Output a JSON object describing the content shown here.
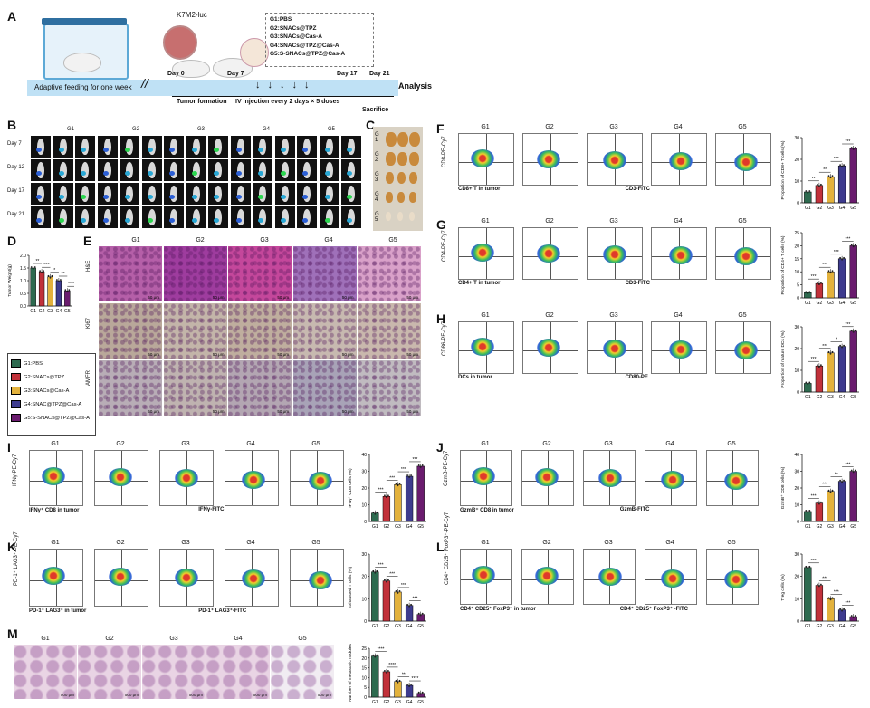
{
  "panels": [
    "A",
    "B",
    "C",
    "D",
    "E",
    "F",
    "G",
    "H",
    "I",
    "J",
    "K",
    "L",
    "M"
  ],
  "panel_a": {
    "model": "K7M2-luc",
    "groups": [
      "G1:PBS",
      "G2:SNACs@TPZ",
      "G3:SNACs@Cas-A",
      "G4:SNACs@TPZ@Cas-A",
      "G5:S-SNACs@TPZ@Cas-A"
    ],
    "timeline_text": "Adaptive feeding for one week",
    "days": [
      "Day 0",
      "Day 7",
      "Day 17",
      "Day 21"
    ],
    "analysis": "Analysis",
    "events": [
      "Tumor formation",
      "IV injection every 2 days × 5 doses",
      "Sacrifice"
    ]
  },
  "groups_short": [
    "G1",
    "G2",
    "G3",
    "G4",
    "G5"
  ],
  "panel_b": {
    "days": [
      "Day 7",
      "Day 12",
      "Day 17",
      "Day 21"
    ]
  },
  "panel_c": {
    "labels": [
      "G 1",
      "G 2",
      "G 3",
      "G 4",
      "G 5"
    ]
  },
  "panel_e": {
    "rows": [
      "H&E",
      "Ki67",
      "AMFR"
    ],
    "scale": "50 μm"
  },
  "legend": [
    "G1:PBS",
    "G2:SNACs@TPZ",
    "G3:SNACs@Cas-A",
    "G4:SNAC@TPZ@Cas-A",
    "G5:S-SNACs@TPZ@Cas-A"
  ],
  "colors": [
    "#2d6a4f",
    "#c1313a",
    "#e3b23c",
    "#3d3b8e",
    "#6a1b6e"
  ],
  "flow": {
    "F": {
      "ylabel": "CD8-PE-Cy7",
      "xlabel": "CD3-FITC",
      "sub": "CD8+ T in tumor"
    },
    "G": {
      "ylabel": "CD4-PE-Cy7",
      "xlabel": "CD3-FITC",
      "sub": "CD4+ T in tumor"
    },
    "H": {
      "ylabel": "CD86-PE-Cy7",
      "xlabel": "CD80-PE",
      "sub": "DCs in tumor"
    },
    "I": {
      "ylabel": "IFNγ-PE-Cy7",
      "xlabel": "IFNγ-FITC",
      "sub": "IFNγ⁺ CD8 in tumor"
    },
    "J": {
      "ylabel": "GzmB-PE-Cy7",
      "xlabel": "GzmB-FITC",
      "sub": "GzmB⁺ CD8 in tumor"
    },
    "K": {
      "ylabel": "PD-1⁺ LAG3⁺-PE-Cy7",
      "xlabel": "PD-1⁺ LAG3⁺-FITC",
      "sub": "PD-1⁺ LAG3⁺ in tumor"
    },
    "L": {
      "ylabel": "CD4⁺ CD25⁺ FoxP3⁺-PE-Cy7",
      "xlabel": "CD4⁺ CD25⁺ FoxP3⁺ -FITC",
      "sub": "CD4⁺ CD25⁺ FoxP3⁺ in tumor"
    }
  },
  "chart_data": [
    {
      "panel": "D",
      "type": "bar",
      "categories": [
        "G1",
        "G2",
        "G3",
        "G4",
        "G5"
      ],
      "values": [
        1.5,
        1.35,
        1.15,
        1.0,
        0.6
      ],
      "ylabel": "Tumor Weight(g)",
      "ylim": [
        0,
        2.0
      ],
      "yticks": [
        "0.0",
        "0.5",
        "1.0",
        "1.5",
        "2.0"
      ],
      "sig": [
        "**",
        "****",
        "*",
        "**",
        "****"
      ]
    },
    {
      "panel": "F",
      "type": "bar",
      "categories": [
        "G1",
        "G2",
        "G3",
        "G4",
        "G5"
      ],
      "values": [
        5,
        8,
        12,
        17,
        25
      ],
      "ylabel": "Proportion of CD8+ T cells (%)",
      "ylim": [
        0,
        30
      ],
      "yticks": [
        "0",
        "10",
        "20",
        "30"
      ],
      "sig": [
        "**",
        "**",
        "***",
        "***"
      ]
    },
    {
      "panel": "G",
      "type": "bar",
      "categories": [
        "G1",
        "G2",
        "G3",
        "G4",
        "G5"
      ],
      "values": [
        2,
        5.5,
        10,
        15,
        20
      ],
      "ylabel": "Proportion of CD4+ T cells (%)",
      "ylim": [
        0,
        25
      ],
      "yticks": [
        "0",
        "5",
        "10",
        "15",
        "20",
        "25"
      ],
      "sig": [
        "***",
        "***",
        "***",
        "***"
      ]
    },
    {
      "panel": "H",
      "type": "bar",
      "categories": [
        "G1",
        "G2",
        "G3",
        "G4",
        "G5"
      ],
      "values": [
        4,
        12,
        18,
        21,
        28
      ],
      "ylabel": "Proportion of mature DCs (%)",
      "ylim": [
        0,
        30
      ],
      "yticks": [
        "0",
        "10",
        "20",
        "30"
      ],
      "sig": [
        "***",
        "***",
        "*",
        "***"
      ]
    },
    {
      "panel": "I",
      "type": "bar",
      "categories": [
        "G1",
        "G2",
        "G3",
        "G4",
        "G5"
      ],
      "values": [
        5,
        15,
        22,
        27,
        33
      ],
      "ylabel": "IFNγ⁺ CD8 cells (%)",
      "ylim": [
        0,
        40
      ],
      "yticks": [
        "0",
        "10",
        "20",
        "30",
        "40"
      ],
      "sig": [
        "***",
        "***",
        "***",
        "***"
      ]
    },
    {
      "panel": "J",
      "type": "bar",
      "categories": [
        "G1",
        "G2",
        "G3",
        "G4",
        "G5"
      ],
      "values": [
        6,
        11,
        18,
        24,
        30
      ],
      "ylabel": "GzmB⁺ CD8 cells (%)",
      "ylim": [
        0,
        40
      ],
      "yticks": [
        "0",
        "10",
        "20",
        "30",
        "40"
      ],
      "sig": [
        "***",
        "***",
        "**",
        "***"
      ]
    },
    {
      "panel": "K",
      "type": "bar",
      "categories": [
        "G1",
        "G2",
        "G3",
        "G4",
        "G5"
      ],
      "values": [
        22,
        18,
        13,
        7,
        3
      ],
      "ylabel": "Exhausted T cells (%)",
      "ylim": [
        0,
        30
      ],
      "yticks": [
        "0",
        "10",
        "20",
        "30"
      ],
      "sig": [
        "***",
        "***",
        "***",
        "***"
      ]
    },
    {
      "panel": "L",
      "type": "bar",
      "categories": [
        "G1",
        "G2",
        "G3",
        "G4",
        "G5"
      ],
      "values": [
        24,
        16,
        10,
        5,
        2
      ],
      "ylabel": "Treg cells (%)",
      "ylim": [
        0,
        30
      ],
      "yticks": [
        "0",
        "10",
        "20",
        "30"
      ],
      "sig": [
        "***",
        "***",
        "***",
        "***"
      ]
    },
    {
      "panel": "M",
      "type": "bar",
      "categories": [
        "G1",
        "G2",
        "G3",
        "G4",
        "G5"
      ],
      "values": [
        21,
        13,
        8,
        6,
        2
      ],
      "ylabel": "Number of metastatic nodules",
      "ylim": [
        0,
        25
      ],
      "yticks": [
        "0",
        "5",
        "10",
        "15",
        "20",
        "25"
      ],
      "sig": [
        "****",
        "****",
        "**",
        "****"
      ]
    }
  ],
  "panel_m": {
    "scale": "500 μm"
  }
}
